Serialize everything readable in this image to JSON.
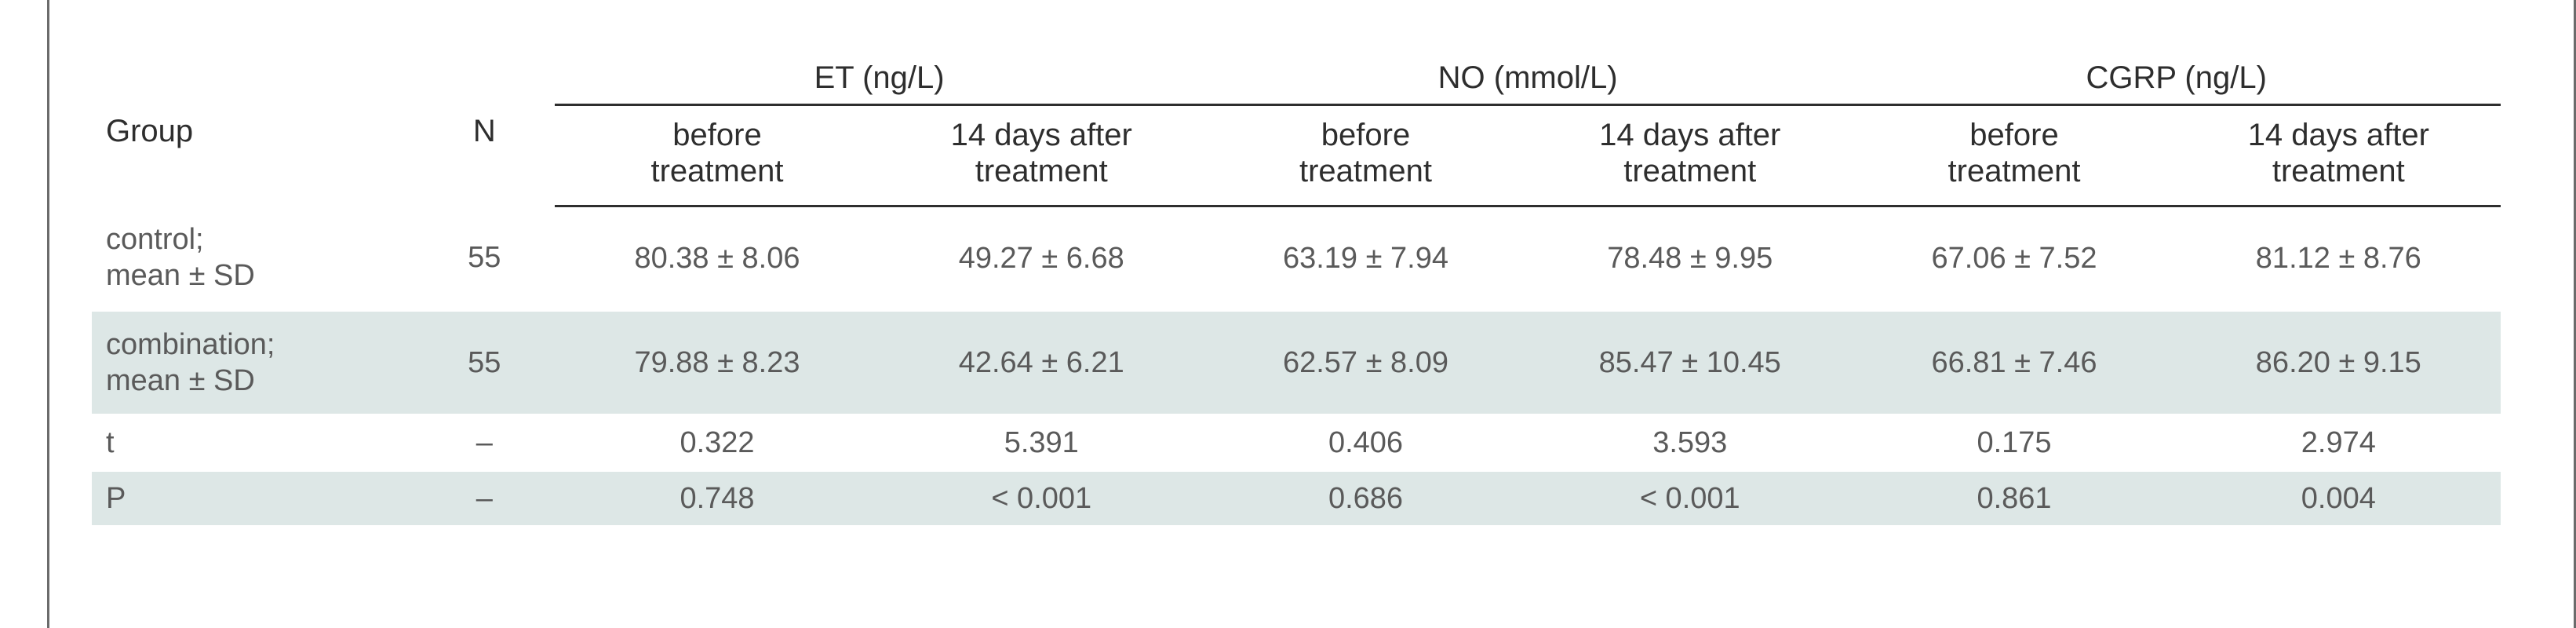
{
  "table": {
    "headers": {
      "group": "Group",
      "n": "N",
      "groups": [
        {
          "label": "ET (ng/L)",
          "sub": [
            "before\ntreatment",
            "14 days after\ntreatment"
          ]
        },
        {
          "label": "NO (mmol/L)",
          "sub": [
            "before\ntreatment",
            "14 days after\ntreatment"
          ]
        },
        {
          "label": "CGRP (ng/L)",
          "sub": [
            "before\ntreatment",
            "14 days after\ntreatment"
          ]
        }
      ],
      "sub_before_l1": "before",
      "sub_before_l2": "treatment",
      "sub_after_l1": "14 days after",
      "sub_after_l2": "treatment"
    },
    "rows": [
      {
        "group_l1": "control;",
        "group_l2": "mean ± SD",
        "n": "55",
        "values": [
          "80.38 ± 8.06",
          "49.27 ± 6.68",
          "63.19 ± 7.94",
          "78.48 ± 9.95",
          "67.06 ± 7.52",
          "81.12 ± 8.76"
        ]
      },
      {
        "group_l1": "combination;",
        "group_l2": "mean ± SD",
        "n": "55",
        "values": [
          "79.88 ± 8.23",
          "42.64 ± 6.21",
          "62.57 ± 8.09",
          "85.47 ± 10.45",
          "66.81 ± 7.46",
          "86.20 ± 9.15"
        ]
      },
      {
        "group_l1": "t",
        "n": "–",
        "values": [
          "0.322",
          "5.391",
          "0.406",
          "3.593",
          "0.175",
          "2.974"
        ]
      },
      {
        "group_l1": "P",
        "n": "–",
        "values": [
          "0.748",
          "< 0.001",
          "0.686",
          "< 0.001",
          "0.861",
          "0.004"
        ]
      }
    ]
  },
  "colors": {
    "shaded_row": "#dde7e6",
    "rule": "#2e2e2e",
    "frame": "#6b6b6b"
  }
}
